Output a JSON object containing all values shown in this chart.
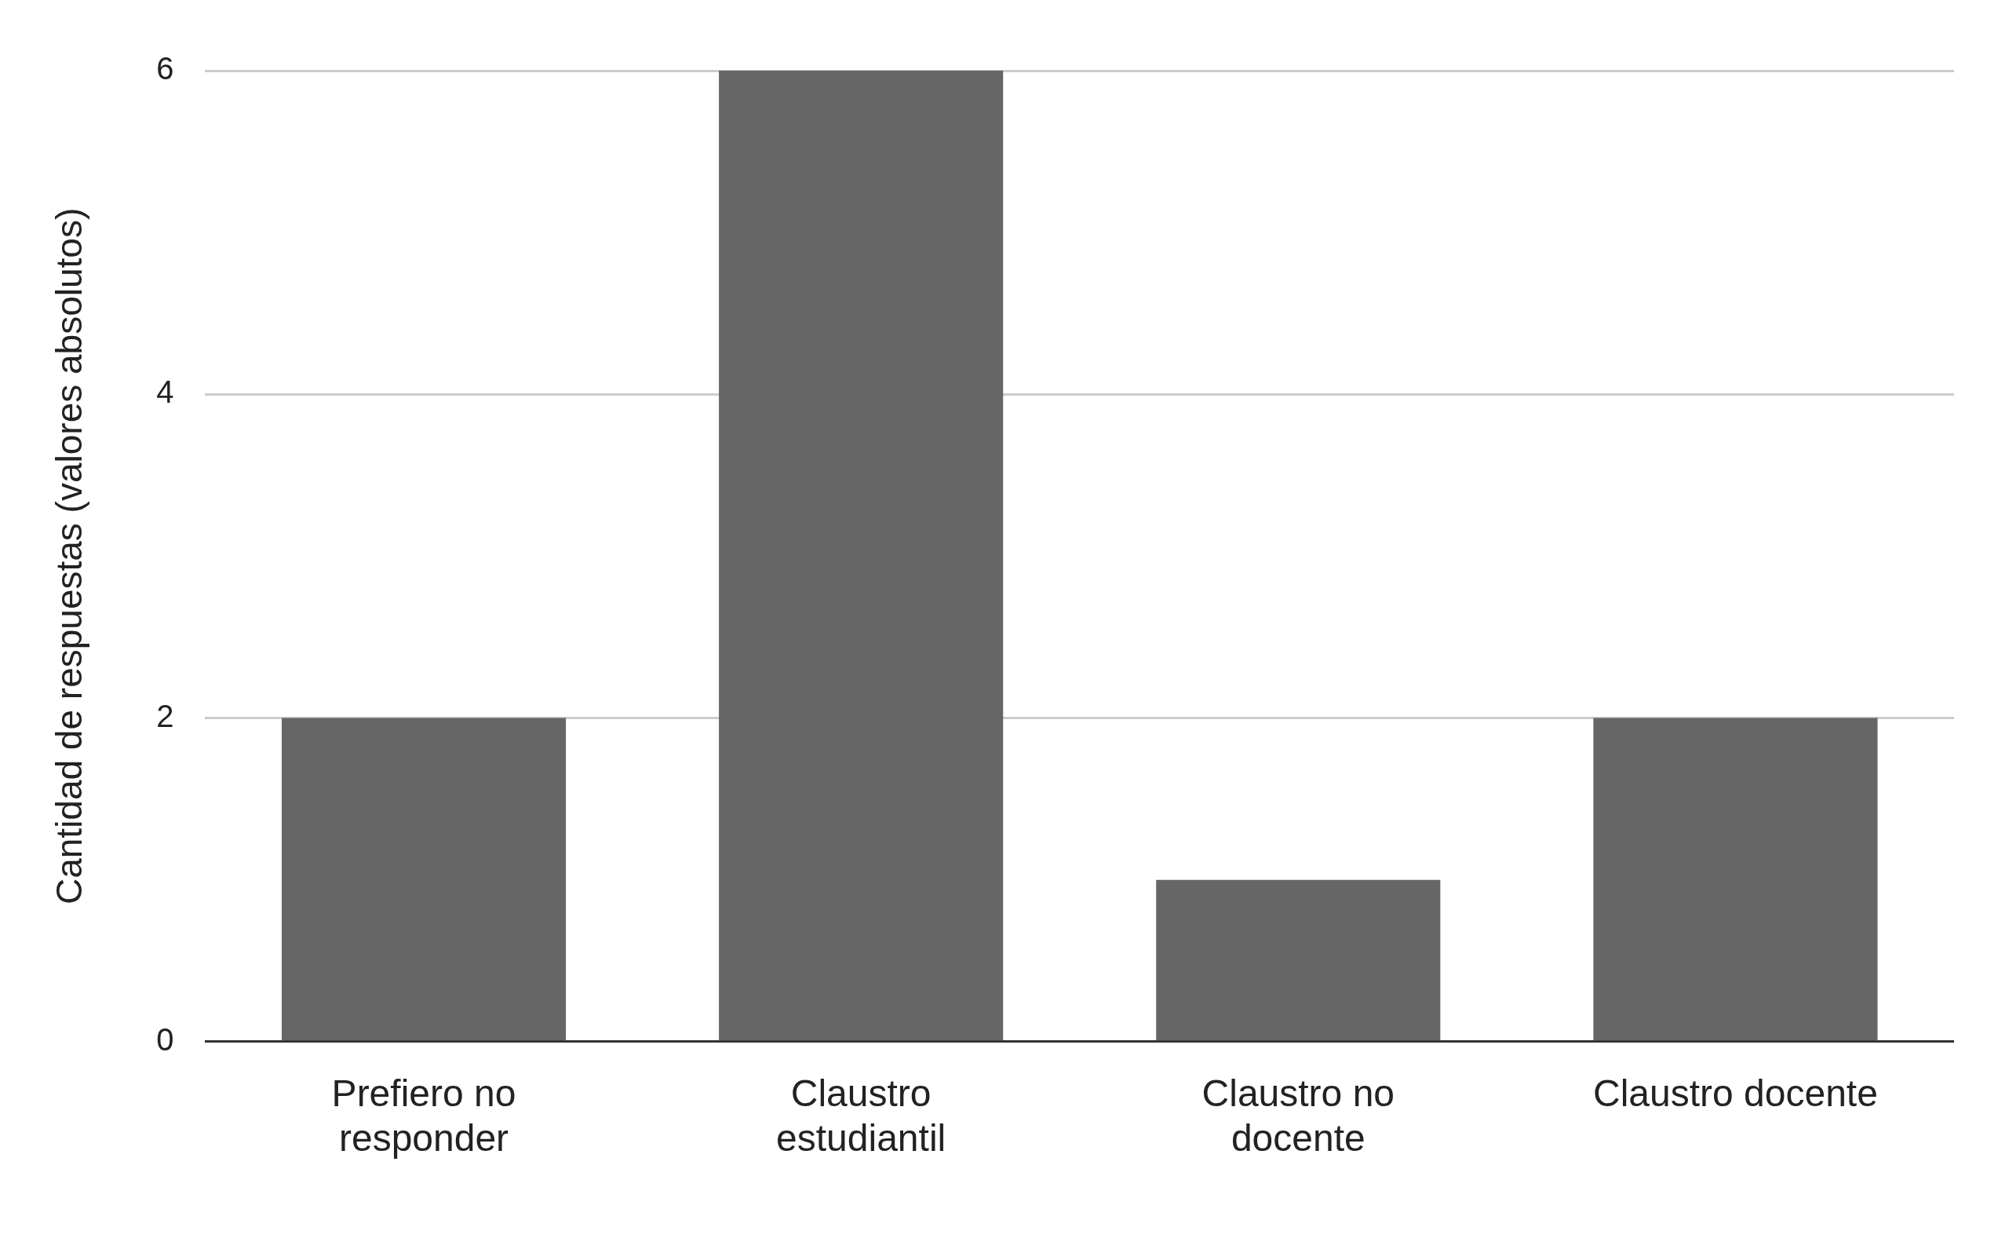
{
  "chart_data": {
    "type": "bar",
    "ylabel": "Cantidad de respuestas (valores absolutos)",
    "categories": [
      "Prefiero no responder",
      "Claustro estudiantil",
      "Claustro no docente",
      "Claustro docente"
    ],
    "values": [
      2,
      6,
      1,
      2
    ],
    "color": "#666666",
    "ylim": [
      0,
      6
    ],
    "yticks": [
      0,
      2,
      4,
      6
    ],
    "grid": "y"
  }
}
